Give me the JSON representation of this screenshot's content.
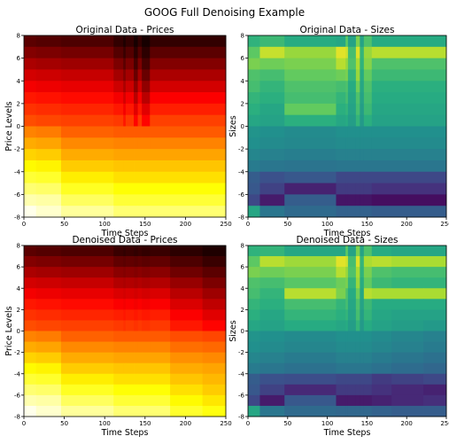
{
  "figure": {
    "title": "GOOG Full Denoising Example"
  },
  "chart_data": [
    {
      "type": "heatmap",
      "title": "Original Data - Prices",
      "xlabel": "Time Steps",
      "ylabel": "Price Levels",
      "xlim": [
        0,
        250
      ],
      "ylim": [
        -8,
        8
      ],
      "xticks": [
        "0",
        "50",
        "100",
        "150",
        "200",
        "250"
      ],
      "yticks": [
        "8",
        "6",
        "4",
        "2",
        "0",
        "-2",
        "-4",
        "-6",
        "-8"
      ],
      "colormap": "hot",
      "x_segments": [
        0,
        15,
        46,
        111,
        123,
        126,
        136,
        141,
        146,
        156,
        250
      ],
      "rows_top_to_bottom": [
        [
          0.12,
          0.11,
          0.1,
          0.06,
          0.03,
          0.06,
          0.02,
          0.06,
          0.02,
          0.06
        ],
        [
          0.18,
          0.17,
          0.16,
          0.11,
          0.07,
          0.11,
          0.05,
          0.11,
          0.05,
          0.12
        ],
        [
          0.24,
          0.23,
          0.22,
          0.17,
          0.12,
          0.17,
          0.09,
          0.17,
          0.09,
          0.18
        ],
        [
          0.3,
          0.29,
          0.28,
          0.23,
          0.18,
          0.23,
          0.14,
          0.23,
          0.14,
          0.24
        ],
        [
          0.35,
          0.34,
          0.33,
          0.29,
          0.24,
          0.29,
          0.2,
          0.29,
          0.2,
          0.3
        ],
        [
          0.4,
          0.39,
          0.38,
          0.35,
          0.3,
          0.35,
          0.26,
          0.35,
          0.26,
          0.36
        ],
        [
          0.44,
          0.43,
          0.42,
          0.4,
          0.35,
          0.4,
          0.32,
          0.4,
          0.32,
          0.41
        ],
        [
          0.48,
          0.47,
          0.46,
          0.45,
          0.4,
          0.45,
          0.37,
          0.45,
          0.37,
          0.46
        ],
        [
          0.56,
          0.55,
          0.51,
          0.5,
          0.5,
          0.5,
          0.5,
          0.5,
          0.5,
          0.5
        ],
        [
          0.62,
          0.61,
          0.57,
          0.56,
          0.56,
          0.56,
          0.56,
          0.56,
          0.56,
          0.56
        ],
        [
          0.68,
          0.67,
          0.62,
          0.61,
          0.61,
          0.61,
          0.61,
          0.61,
          0.61,
          0.61
        ],
        [
          0.74,
          0.73,
          0.67,
          0.66,
          0.66,
          0.66,
          0.66,
          0.66,
          0.66,
          0.66
        ],
        [
          0.8,
          0.79,
          0.72,
          0.7,
          0.7,
          0.7,
          0.7,
          0.7,
          0.7,
          0.7
        ],
        [
          0.86,
          0.85,
          0.78,
          0.75,
          0.75,
          0.75,
          0.75,
          0.75,
          0.75,
          0.75
        ],
        [
          0.92,
          0.91,
          0.84,
          0.8,
          0.8,
          0.8,
          0.8,
          0.8,
          0.8,
          0.8
        ],
        [
          0.98,
          0.95,
          0.9,
          0.86,
          0.86,
          0.86,
          0.86,
          0.86,
          0.86,
          0.86
        ]
      ]
    },
    {
      "type": "heatmap",
      "title": "Original Data - Sizes",
      "xlabel": "Time Steps",
      "ylabel": "Sizes",
      "xlim": [
        0,
        250
      ],
      "ylim": [
        -8,
        8
      ],
      "xticks": [
        "0",
        "50",
        "100",
        "150",
        "200",
        "250"
      ],
      "yticks": [
        "8",
        "6",
        "4",
        "2",
        "0",
        "-2",
        "-4",
        "-6",
        "-8"
      ],
      "colormap": "viridis",
      "x_segments": [
        0,
        15,
        46,
        111,
        123,
        126,
        136,
        141,
        146,
        156,
        250
      ],
      "rows_top_to_bottom": [
        [
          0.65,
          0.68,
          0.62,
          0.6,
          0.75,
          0.58,
          0.8,
          0.58,
          0.72,
          0.62
        ],
        [
          0.75,
          0.92,
          0.85,
          0.96,
          0.93,
          0.7,
          0.95,
          0.66,
          0.85,
          0.9
        ],
        [
          0.8,
          0.78,
          0.8,
          0.9,
          0.85,
          0.72,
          0.88,
          0.65,
          0.82,
          0.72
        ],
        [
          0.72,
          0.7,
          0.76,
          0.78,
          0.8,
          0.66,
          0.85,
          0.62,
          0.76,
          0.68
        ],
        [
          0.7,
          0.66,
          0.72,
          0.7,
          0.72,
          0.62,
          0.78,
          0.6,
          0.72,
          0.64
        ],
        [
          0.66,
          0.64,
          0.7,
          0.66,
          0.7,
          0.6,
          0.72,
          0.58,
          0.7,
          0.62
        ],
        [
          0.64,
          0.6,
          0.76,
          0.64,
          0.66,
          0.58,
          0.7,
          0.56,
          0.68,
          0.6
        ],
        [
          0.6,
          0.58,
          0.64,
          0.6,
          0.62,
          0.56,
          0.66,
          0.54,
          0.64,
          0.58
        ],
        [
          0.52,
          0.5,
          0.48,
          0.5,
          0.5,
          0.5,
          0.5,
          0.5,
          0.5,
          0.5
        ],
        [
          0.5,
          0.48,
          0.47,
          0.48,
          0.48,
          0.48,
          0.48,
          0.48,
          0.48,
          0.48
        ],
        [
          0.46,
          0.44,
          0.43,
          0.44,
          0.44,
          0.44,
          0.44,
          0.44,
          0.44,
          0.44
        ],
        [
          0.42,
          0.4,
          0.39,
          0.4,
          0.4,
          0.4,
          0.4,
          0.4,
          0.4,
          0.4
        ],
        [
          0.3,
          0.25,
          0.28,
          0.22,
          0.22,
          0.22,
          0.22,
          0.22,
          0.22,
          0.22
        ],
        [
          0.28,
          0.2,
          0.1,
          0.18,
          0.18,
          0.18,
          0.18,
          0.18,
          0.18,
          0.15
        ],
        [
          0.22,
          0.08,
          0.3,
          0.06,
          0.06,
          0.06,
          0.06,
          0.06,
          0.06,
          0.04
        ],
        [
          0.6,
          0.4,
          0.35,
          0.32,
          0.32,
          0.32,
          0.32,
          0.32,
          0.32,
          0.3
        ]
      ]
    },
    {
      "type": "heatmap",
      "title": "Denoised Data - Prices",
      "xlabel": "Time Steps",
      "ylabel": "Price Levels",
      "xlim": [
        0,
        250
      ],
      "ylim": [
        -8,
        8
      ],
      "xticks": [
        "0",
        "50",
        "100",
        "150",
        "200",
        "250"
      ],
      "yticks": [
        "8",
        "6",
        "4",
        "2",
        "0",
        "-2",
        "-4",
        "-6",
        "-8"
      ],
      "colormap": "hot",
      "x_segments": [
        0,
        15,
        46,
        111,
        123,
        126,
        136,
        141,
        146,
        156,
        181,
        221,
        250
      ],
      "rows_top_to_bottom": [
        [
          0.12,
          0.11,
          0.1,
          0.07,
          0.06,
          0.07,
          0.06,
          0.07,
          0.06,
          0.07,
          0.05,
          0.03
        ],
        [
          0.18,
          0.17,
          0.16,
          0.13,
          0.12,
          0.13,
          0.12,
          0.13,
          0.12,
          0.13,
          0.1,
          0.07
        ],
        [
          0.24,
          0.23,
          0.22,
          0.19,
          0.18,
          0.19,
          0.18,
          0.19,
          0.18,
          0.19,
          0.15,
          0.12
        ],
        [
          0.3,
          0.29,
          0.28,
          0.25,
          0.24,
          0.25,
          0.24,
          0.25,
          0.24,
          0.25,
          0.21,
          0.17
        ],
        [
          0.35,
          0.34,
          0.33,
          0.31,
          0.3,
          0.31,
          0.3,
          0.31,
          0.3,
          0.31,
          0.26,
          0.22
        ],
        [
          0.4,
          0.39,
          0.38,
          0.36,
          0.35,
          0.36,
          0.35,
          0.36,
          0.35,
          0.36,
          0.31,
          0.27
        ],
        [
          0.44,
          0.43,
          0.42,
          0.41,
          0.4,
          0.41,
          0.4,
          0.41,
          0.4,
          0.41,
          0.36,
          0.32
        ],
        [
          0.48,
          0.47,
          0.46,
          0.45,
          0.44,
          0.45,
          0.44,
          0.45,
          0.44,
          0.45,
          0.4,
          0.37
        ],
        [
          0.56,
          0.55,
          0.51,
          0.5,
          0.5,
          0.5,
          0.5,
          0.5,
          0.5,
          0.5,
          0.48,
          0.47
        ],
        [
          0.62,
          0.61,
          0.57,
          0.56,
          0.56,
          0.56,
          0.56,
          0.56,
          0.56,
          0.56,
          0.53,
          0.52
        ],
        [
          0.68,
          0.67,
          0.62,
          0.61,
          0.61,
          0.61,
          0.61,
          0.61,
          0.61,
          0.61,
          0.58,
          0.57
        ],
        [
          0.74,
          0.73,
          0.67,
          0.66,
          0.66,
          0.66,
          0.66,
          0.66,
          0.66,
          0.66,
          0.62,
          0.61
        ],
        [
          0.8,
          0.79,
          0.72,
          0.7,
          0.7,
          0.7,
          0.7,
          0.7,
          0.7,
          0.7,
          0.66,
          0.64
        ],
        [
          0.86,
          0.85,
          0.78,
          0.75,
          0.75,
          0.75,
          0.75,
          0.75,
          0.75,
          0.75,
          0.7,
          0.67
        ],
        [
          0.92,
          0.91,
          0.84,
          0.8,
          0.8,
          0.8,
          0.8,
          0.8,
          0.8,
          0.8,
          0.74,
          0.71
        ],
        [
          0.98,
          0.95,
          0.9,
          0.86,
          0.86,
          0.86,
          0.86,
          0.86,
          0.86,
          0.86,
          0.79,
          0.76
        ]
      ]
    },
    {
      "type": "heatmap",
      "title": "Denoised Data - Sizes",
      "xlabel": "Time Steps",
      "ylabel": "Sizes",
      "xlim": [
        0,
        250
      ],
      "ylim": [
        -8,
        8
      ],
      "xticks": [
        "0",
        "50",
        "100",
        "150",
        "200",
        "250"
      ],
      "yticks": [
        "8",
        "6",
        "4",
        "2",
        "0",
        "-2",
        "-4",
        "-6",
        "-8"
      ],
      "colormap": "viridis",
      "x_segments": [
        0,
        15,
        46,
        111,
        123,
        126,
        136,
        141,
        146,
        156,
        181,
        221,
        250
      ],
      "rows_top_to_bottom": [
        [
          0.65,
          0.66,
          0.6,
          0.6,
          0.75,
          0.58,
          0.8,
          0.58,
          0.72,
          0.62,
          0.6,
          0.6
        ],
        [
          0.75,
          0.9,
          0.86,
          0.96,
          0.93,
          0.7,
          0.95,
          0.66,
          0.88,
          0.9,
          0.88,
          0.88
        ],
        [
          0.8,
          0.78,
          0.8,
          0.9,
          0.85,
          0.72,
          0.88,
          0.65,
          0.8,
          0.72,
          0.7,
          0.7
        ],
        [
          0.72,
          0.7,
          0.74,
          0.78,
          0.8,
          0.66,
          0.85,
          0.62,
          0.76,
          0.68,
          0.66,
          0.66
        ],
        [
          0.7,
          0.66,
          0.9,
          0.8,
          0.72,
          0.62,
          0.78,
          0.6,
          0.9,
          0.88,
          0.88,
          0.88
        ],
        [
          0.66,
          0.64,
          0.7,
          0.66,
          0.7,
          0.6,
          0.72,
          0.58,
          0.68,
          0.62,
          0.62,
          0.62
        ],
        [
          0.64,
          0.6,
          0.66,
          0.64,
          0.66,
          0.58,
          0.7,
          0.56,
          0.66,
          0.6,
          0.58,
          0.58
        ],
        [
          0.6,
          0.58,
          0.62,
          0.6,
          0.62,
          0.56,
          0.66,
          0.54,
          0.62,
          0.58,
          0.56,
          0.54
        ],
        [
          0.52,
          0.5,
          0.48,
          0.5,
          0.5,
          0.5,
          0.5,
          0.5,
          0.5,
          0.48,
          0.46,
          0.44
        ],
        [
          0.5,
          0.48,
          0.46,
          0.48,
          0.48,
          0.48,
          0.48,
          0.48,
          0.48,
          0.46,
          0.44,
          0.42
        ],
        [
          0.46,
          0.44,
          0.42,
          0.44,
          0.44,
          0.44,
          0.44,
          0.44,
          0.44,
          0.42,
          0.4,
          0.38
        ],
        [
          0.42,
          0.4,
          0.38,
          0.4,
          0.4,
          0.4,
          0.4,
          0.4,
          0.4,
          0.38,
          0.36,
          0.34
        ],
        [
          0.3,
          0.25,
          0.24,
          0.22,
          0.22,
          0.22,
          0.22,
          0.22,
          0.22,
          0.18,
          0.2,
          0.22
        ],
        [
          0.28,
          0.2,
          0.12,
          0.18,
          0.18,
          0.18,
          0.18,
          0.18,
          0.18,
          0.15,
          0.12,
          0.1
        ],
        [
          0.22,
          0.08,
          0.28,
          0.08,
          0.08,
          0.08,
          0.08,
          0.08,
          0.08,
          0.1,
          0.12,
          0.14
        ],
        [
          0.6,
          0.4,
          0.35,
          0.34,
          0.34,
          0.34,
          0.34,
          0.34,
          0.34,
          0.32,
          0.3,
          0.3
        ]
      ]
    }
  ]
}
